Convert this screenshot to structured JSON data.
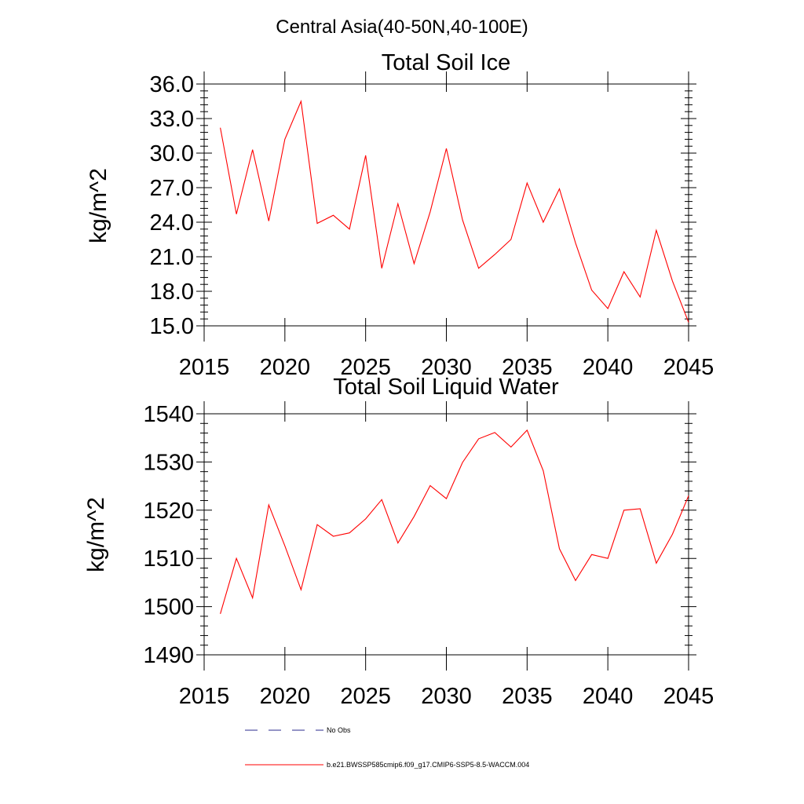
{
  "figure": {
    "title": "Central Asia(40-50N,40-100E)"
  },
  "chart_data": [
    {
      "type": "line",
      "title": "Total Soil Ice",
      "xlabel": "",
      "ylabel": "kg/m^2",
      "xlim": [
        2015,
        2045
      ],
      "ylim": [
        15,
        36
      ],
      "x_ticks": [
        2015,
        2020,
        2025,
        2030,
        2035,
        2040,
        2045
      ],
      "y_ticks": [
        15,
        18,
        21,
        24,
        27,
        30,
        33,
        36
      ],
      "x_tick_labels": [
        "2015",
        "2020",
        "2025",
        "2030",
        "2035",
        "2040",
        "2045"
      ],
      "y_tick_labels": [
        "15.0",
        "18.0",
        "21.0",
        "24.0",
        "27.0",
        "30.0",
        "33.0",
        "36.0"
      ],
      "grid": false,
      "series": [
        {
          "name": "b.e21.BWSSP585cmip6.f09_g17.CMIP6-SSP5-8.5-WACCM.004",
          "color": "#ff0000",
          "x": [
            2016,
            2017,
            2018,
            2019,
            2020,
            2021,
            2022,
            2023,
            2024,
            2025,
            2026,
            2027,
            2028,
            2029,
            2030,
            2031,
            2032,
            2033,
            2034,
            2035,
            2036,
            2037,
            2038,
            2039,
            2040,
            2041,
            2042,
            2043,
            2044,
            2045
          ],
          "values": [
            32.2,
            24.7,
            30.3,
            24.1,
            31.2,
            34.5,
            23.9,
            24.6,
            23.4,
            29.8,
            20.0,
            25.6,
            20.4,
            24.9,
            30.4,
            24.2,
            20.0,
            21.2,
            22.5,
            27.4,
            24.0,
            26.9,
            22.2,
            18.1,
            16.5,
            19.7,
            17.5,
            23.3,
            18.9,
            15.3
          ]
        }
      ]
    },
    {
      "type": "line",
      "title": "Total Soil Liquid Water",
      "xlabel": "",
      "ylabel": "kg/m^2",
      "xlim": [
        2015,
        2045
      ],
      "ylim": [
        1490,
        1540
      ],
      "x_ticks": [
        2015,
        2020,
        2025,
        2030,
        2035,
        2040,
        2045
      ],
      "y_ticks": [
        1490,
        1500,
        1510,
        1520,
        1530,
        1540
      ],
      "x_tick_labels": [
        "2015",
        "2020",
        "2025",
        "2030",
        "2035",
        "2040",
        "2045"
      ],
      "y_tick_labels": [
        "1490",
        "1500",
        "1510",
        "1520",
        "1530",
        "1540"
      ],
      "grid": false,
      "series": [
        {
          "name": "b.e21.BWSSP585cmip6.f09_g17.CMIP6-SSP5-8.5-WACCM.004",
          "color": "#ff0000",
          "x": [
            2016,
            2017,
            2018,
            2019,
            2020,
            2021,
            2022,
            2023,
            2024,
            2025,
            2026,
            2027,
            2028,
            2029,
            2030,
            2031,
            2032,
            2033,
            2034,
            2035,
            2036,
            2037,
            2038,
            2039,
            2040,
            2041,
            2042,
            2043,
            2044,
            2045
          ],
          "values": [
            1498.5,
            1510.0,
            1501.8,
            1521.1,
            1512.6,
            1503.5,
            1517.0,
            1514.6,
            1515.3,
            1518.2,
            1522.2,
            1513.2,
            1518.7,
            1525.1,
            1522.4,
            1529.9,
            1534.8,
            1536.1,
            1533.1,
            1536.6,
            1528.2,
            1512.0,
            1505.4,
            1510.8,
            1510.0,
            1520.0,
            1520.3,
            1509.0,
            1515.0,
            1523.0
          ]
        }
      ]
    }
  ],
  "legend": {
    "position": "bottom",
    "items": [
      {
        "label": "No Obs",
        "style": "dashed",
        "color": "#2b2b8c"
      },
      {
        "label": "b.e21.BWSSP585cmip6.f09_g17.CMIP6-SSP5-8.5-WACCM.004",
        "style": "solid",
        "color": "#ff0000"
      }
    ]
  }
}
